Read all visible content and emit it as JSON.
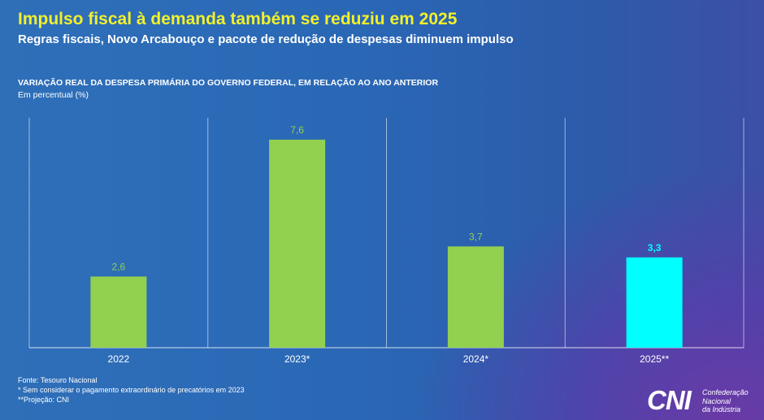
{
  "header": {
    "title": "Impulso fiscal à demanda também se reduziu em 2025",
    "subtitle": "Regras fiscais, Novo Arcabouço e pacote de redução de despesas diminuem impulso"
  },
  "chart_data": {
    "type": "bar",
    "title": "VARIAÇÃO REAL DA DESPESA PRIMÁRIA DO GOVERNO FEDERAL, EM RELAÇÃO AO ANO ANTERIOR",
    "ylabel": "Em percentual (%)",
    "xlabel": "",
    "categories": [
      "2022",
      "2023*",
      "2024*",
      "2025**"
    ],
    "values": [
      2.6,
      7.6,
      3.7,
      3.3
    ],
    "value_labels": [
      "2,6",
      "7,6",
      "3,7",
      "3,3"
    ],
    "bar_colors": [
      "#92d050",
      "#92d050",
      "#92d050",
      "#00ffff"
    ],
    "label_colors": [
      "#92d050",
      "#92d050",
      "#92d050",
      "#00ffff"
    ],
    "ylim": [
      0,
      8.4
    ],
    "grid": false
  },
  "footnotes": {
    "source": "Fonte: Tesouro Nacional",
    "note1": "* Sem considerar o pagamento extraordinário de precatórios em 2023",
    "note2": "**Projeção: CNI"
  },
  "logo": {
    "mark": "CNI",
    "line1": "Confederação",
    "line2": "Nacional",
    "line3": "da Indústria"
  }
}
